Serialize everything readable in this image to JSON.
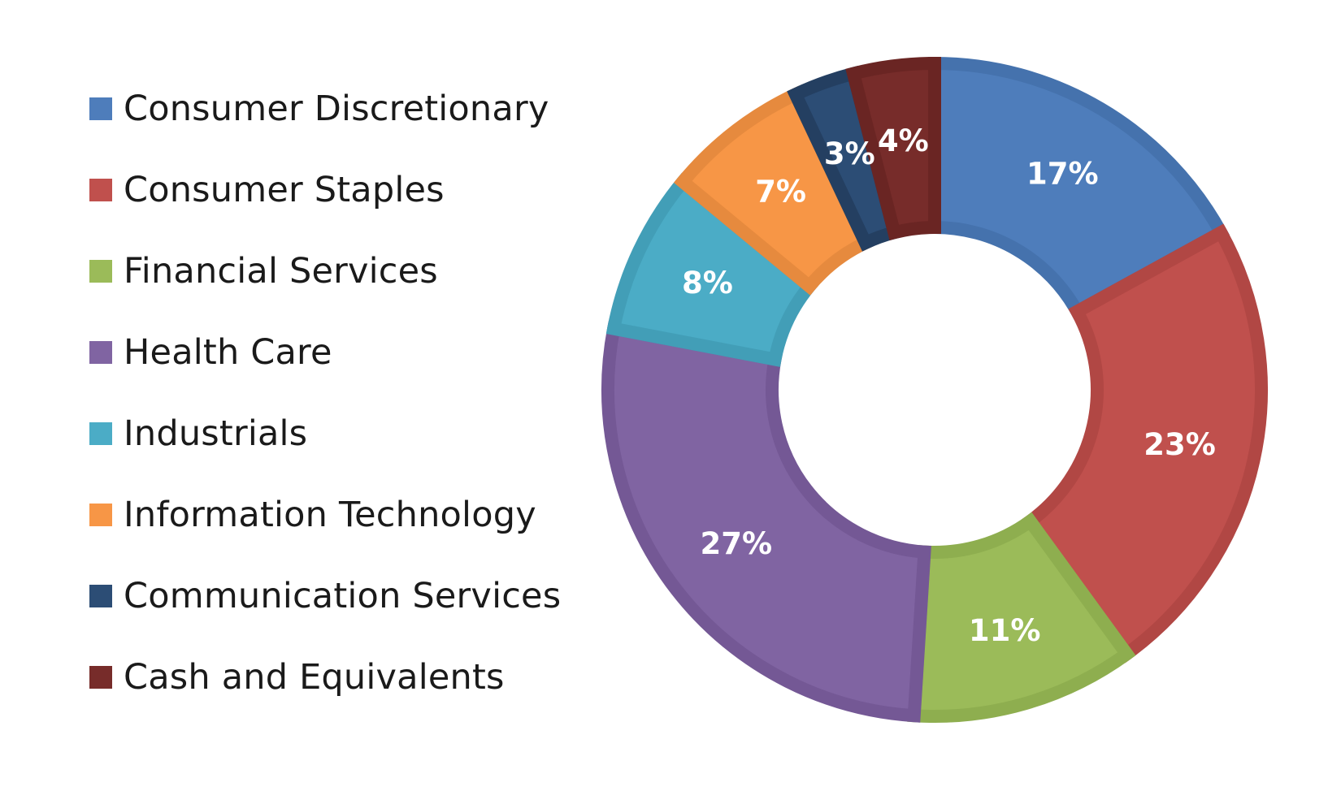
{
  "chart_data": {
    "type": "pie",
    "variant": "donut",
    "legend_position": "left",
    "title": "",
    "categories": [
      "Consumer Discretionary",
      "Consumer Staples",
      "Financial Services",
      "Health Care",
      "Industrials",
      "Information Technology",
      "Communication Services",
      "Cash and Equivalents"
    ],
    "values": [
      17,
      23,
      11,
      27,
      8,
      7,
      3,
      4
    ],
    "labels": [
      "17%",
      "23%",
      "11%",
      "27%",
      "8%",
      "7%",
      "3%",
      "4%"
    ],
    "colors": [
      "#4e7dbb",
      "#c0504d",
      "#9bbb59",
      "#8064a2",
      "#4bacc6",
      "#f79646",
      "#2c4d75",
      "#772c2a"
    ],
    "border_colors": [
      "#4572ad",
      "#b14744",
      "#8eae4f",
      "#745895",
      "#429eb7",
      "#e68a3e",
      "#243f61",
      "#6a2523"
    ]
  }
}
